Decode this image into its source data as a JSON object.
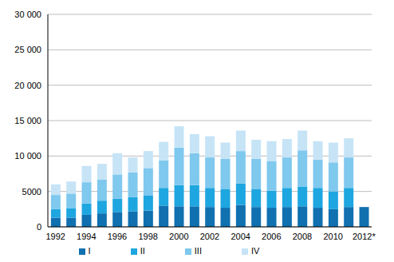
{
  "chart_data": {
    "type": "bar",
    "stacked": true,
    "grid": true,
    "legend": "bottom",
    "categories": [
      "1992",
      null,
      "1994",
      null,
      "1996",
      null,
      "1998",
      null,
      "2000",
      null,
      "2002",
      null,
      "2004",
      null,
      "2006",
      null,
      "2008",
      null,
      "2010",
      null,
      "2012*"
    ],
    "series": [
      {
        "name": "I",
        "color": "#1070b0",
        "values": [
          1300,
          1300,
          1700,
          1900,
          2100,
          2200,
          2300,
          3000,
          2900,
          2900,
          2800,
          2700,
          3100,
          2800,
          2700,
          2800,
          2900,
          2700,
          2500,
          2800,
          2800
        ]
      },
      {
        "name": "II",
        "color": "#1ea6e0",
        "values": [
          1200,
          1300,
          1600,
          1800,
          1900,
          2000,
          2100,
          2500,
          3000,
          3000,
          2700,
          2600,
          3000,
          2500,
          2400,
          2700,
          2800,
          2800,
          2500,
          2700,
          null
        ]
      },
      {
        "name": "III",
        "color": "#7fc8ee",
        "values": [
          2000,
          2100,
          3000,
          3000,
          3400,
          3500,
          3900,
          3900,
          5300,
          4500,
          4300,
          4300,
          4600,
          4300,
          4200,
          4300,
          5100,
          4000,
          4100,
          4300,
          null
        ]
      },
      {
        "name": "IV",
        "color": "#c6e4f6",
        "values": [
          1500,
          1700,
          2300,
          2200,
          3000,
          2100,
          2400,
          2600,
          3000,
          2700,
          3000,
          2300,
          2900,
          2700,
          2800,
          2600,
          2800,
          2600,
          2800,
          2700,
          null
        ]
      }
    ],
    "ylim": [
      0,
      30000
    ],
    "yticks": [
      0,
      {
        "value": 5000,
        "label": "5000"
      },
      {
        "value": 10000,
        "label": "10 000"
      },
      {
        "value": 15000,
        "label": "15 000"
      },
      {
        "value": 20000,
        "label": "20 000"
      },
      {
        "value": 25000,
        "label": "25 000"
      },
      {
        "value": 30000,
        "label": "30 000"
      }
    ]
  }
}
